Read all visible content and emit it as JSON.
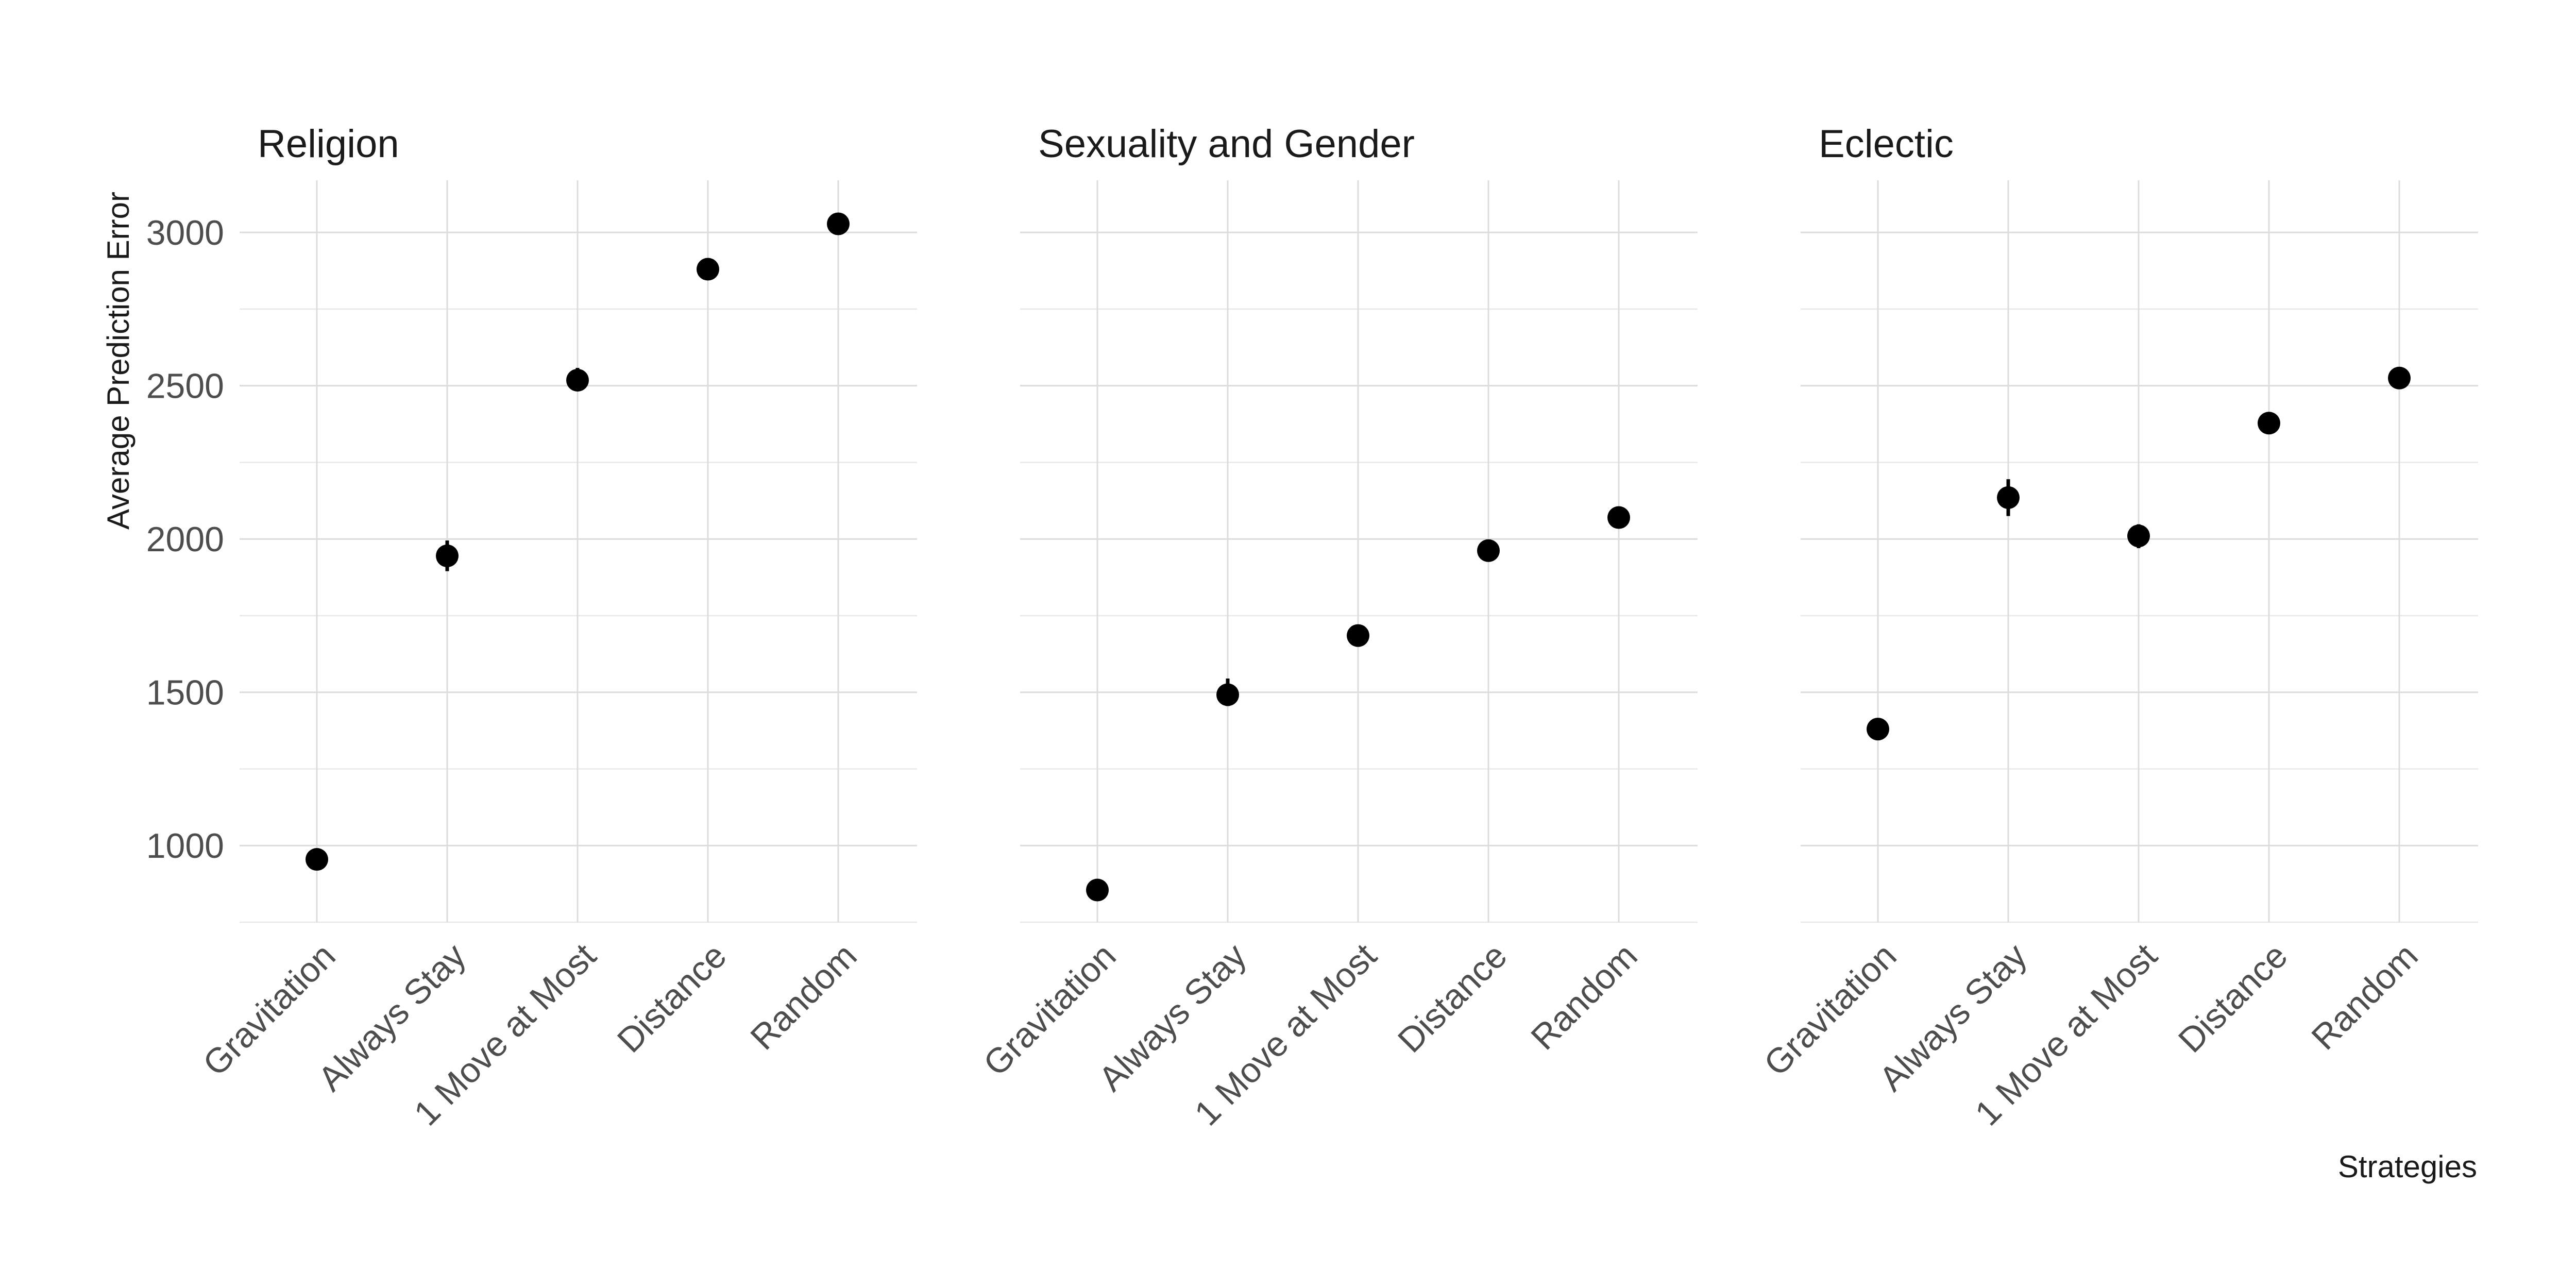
{
  "chart_data": {
    "type": "scatter",
    "x_axis_label": "Strategies",
    "y_axis_label": "Average Prediction Error",
    "categories": [
      "Gravitation",
      "Always Stay",
      "1 Move at Most",
      "Distance",
      "Random"
    ],
    "ylim": [
      750,
      3170
    ],
    "y_ticks": [
      1000,
      1500,
      2000,
      2500,
      3000
    ],
    "y_minor_ticks": [
      750,
      1250,
      1750,
      2250,
      2750
    ],
    "grid": true,
    "legend": "none",
    "panels": [
      {
        "title": "Religion",
        "values": [
          955,
          1945,
          2518,
          2880,
          3028
        ],
        "error_low": [
          945,
          1895,
          2488,
          2872,
          3022
        ],
        "error_high": [
          965,
          1995,
          2558,
          2888,
          3034
        ]
      },
      {
        "title": "Sexuality and Gender",
        "values": [
          855,
          1492,
          1685,
          1962,
          2070
        ],
        "error_low": [
          847,
          1455,
          1675,
          1955,
          2063
        ],
        "error_high": [
          863,
          1545,
          1695,
          1969,
          2077
        ]
      },
      {
        "title": "Eclectic",
        "values": [
          1380,
          2135,
          2010,
          2378,
          2525
        ],
        "error_low": [
          1373,
          2075,
          1970,
          2371,
          2518
        ],
        "error_high": [
          1387,
          2195,
          2048,
          2385,
          2532
        ]
      }
    ]
  }
}
